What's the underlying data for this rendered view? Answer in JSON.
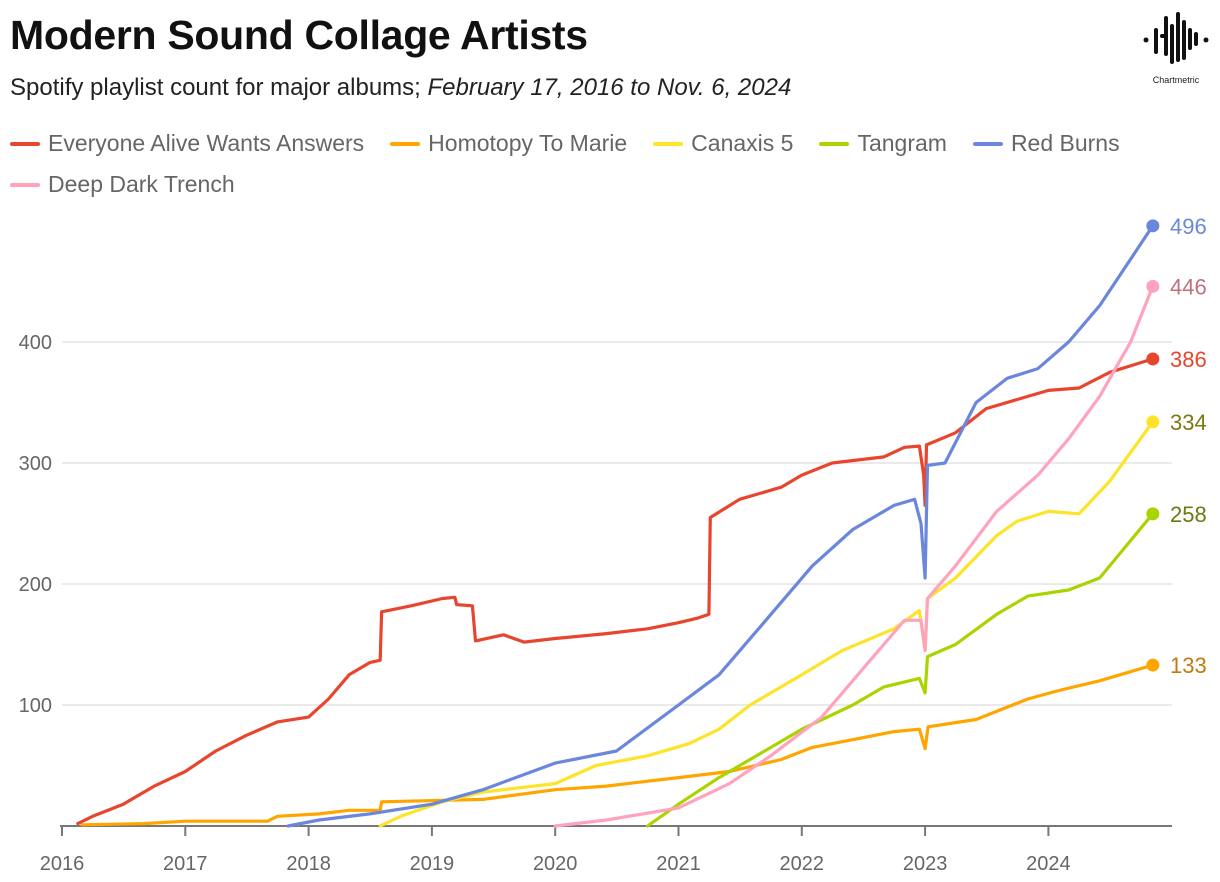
{
  "header": {
    "title": "Modern Sound Collage Artists",
    "subtitle_plain": "Spotify playlist count for major albums; ",
    "subtitle_italic": "February 17, 2016 to Nov. 6, 2024"
  },
  "logo": {
    "text": "Chartmetric"
  },
  "chart_data": {
    "type": "line",
    "title": "Modern Sound Collage Artists",
    "subtitle": "Spotify playlist count for major albums; February 17, 2016 to Nov. 6, 2024",
    "xlabel": "",
    "ylabel": "",
    "xlim": [
      "2016-01-01",
      "2024-12-31"
    ],
    "ylim": [
      0,
      500
    ],
    "x_ticks": [
      "2016",
      "2017",
      "2018",
      "2019",
      "2020",
      "2021",
      "2022",
      "2023",
      "2024"
    ],
    "y_ticks": [
      100,
      200,
      300,
      400
    ],
    "grid": "horizontal",
    "legend_position": "top",
    "series": [
      {
        "name": "Everyone Alive Wants Answers",
        "color": "#e8452e",
        "label_color": "#e8452e",
        "end_value": "386",
        "points": [
          [
            "2016-02-17",
            2
          ],
          [
            "2016-04-01",
            8
          ],
          [
            "2016-07-01",
            18
          ],
          [
            "2016-10-01",
            33
          ],
          [
            "2017-01-01",
            45
          ],
          [
            "2017-04-01",
            62
          ],
          [
            "2017-07-01",
            75
          ],
          [
            "2017-10-01",
            86
          ],
          [
            "2018-01-01",
            90
          ],
          [
            "2018-03-01",
            105
          ],
          [
            "2018-05-01",
            125
          ],
          [
            "2018-07-01",
            135
          ],
          [
            "2018-08-01",
            137
          ],
          [
            "2018-08-05",
            177
          ],
          [
            "2018-11-01",
            182
          ],
          [
            "2019-02-01",
            188
          ],
          [
            "2019-03-10",
            189
          ],
          [
            "2019-03-15",
            183
          ],
          [
            "2019-05-01",
            182
          ],
          [
            "2019-05-10",
            153
          ],
          [
            "2019-08-01",
            158
          ],
          [
            "2019-10-01",
            152
          ],
          [
            "2020-01-01",
            155
          ],
          [
            "2020-06-01",
            159
          ],
          [
            "2020-10-01",
            163
          ],
          [
            "2021-01-01",
            168
          ],
          [
            "2021-03-01",
            172
          ],
          [
            "2021-04-01",
            175
          ],
          [
            "2021-04-05",
            255
          ],
          [
            "2021-07-01",
            270
          ],
          [
            "2021-11-01",
            280
          ],
          [
            "2022-01-01",
            290
          ],
          [
            "2022-04-01",
            300
          ],
          [
            "2022-09-01",
            305
          ],
          [
            "2022-11-01",
            313
          ],
          [
            "2022-12-15",
            314
          ],
          [
            "2022-12-28",
            290
          ],
          [
            "2023-01-01",
            265
          ],
          [
            "2023-01-05",
            315
          ],
          [
            "2023-04-01",
            325
          ],
          [
            "2023-07-01",
            345
          ],
          [
            "2023-11-01",
            355
          ],
          [
            "2024-01-01",
            360
          ],
          [
            "2024-04-01",
            362
          ],
          [
            "2024-07-01",
            375
          ],
          [
            "2024-11-06",
            386
          ]
        ]
      },
      {
        "name": "Homotopy To Marie",
        "color": "#ffa500",
        "label_color": "#c27a10",
        "end_value": "133",
        "points": [
          [
            "2016-03-01",
            1
          ],
          [
            "2016-09-01",
            2
          ],
          [
            "2017-01-01",
            4
          ],
          [
            "2017-09-01",
            4
          ],
          [
            "2017-10-01",
            8
          ],
          [
            "2018-02-01",
            10
          ],
          [
            "2018-05-01",
            13
          ],
          [
            "2018-08-01",
            13
          ],
          [
            "2018-08-05",
            20
          ],
          [
            "2019-06-01",
            22
          ],
          [
            "2020-01-01",
            30
          ],
          [
            "2020-06-01",
            33
          ],
          [
            "2020-10-01",
            37
          ],
          [
            "2021-01-01",
            40
          ],
          [
            "2021-06-01",
            45
          ],
          [
            "2021-11-01",
            55
          ],
          [
            "2022-02-01",
            65
          ],
          [
            "2022-07-01",
            73
          ],
          [
            "2022-10-01",
            78
          ],
          [
            "2022-12-15",
            80
          ],
          [
            "2023-01-01",
            64
          ],
          [
            "2023-01-10",
            82
          ],
          [
            "2023-06-01",
            88
          ],
          [
            "2023-11-01",
            105
          ],
          [
            "2024-02-01",
            112
          ],
          [
            "2024-06-01",
            120
          ],
          [
            "2024-11-06",
            133
          ]
        ]
      },
      {
        "name": "Canaxis 5",
        "color": "#fde428",
        "label_color": "#7a7a10",
        "end_value": "334",
        "points": [
          [
            "2018-08-01",
            0
          ],
          [
            "2018-10-01",
            8
          ],
          [
            "2019-02-01",
            20
          ],
          [
            "2019-06-01",
            28
          ],
          [
            "2020-01-01",
            35
          ],
          [
            "2020-05-01",
            50
          ],
          [
            "2020-10-01",
            58
          ],
          [
            "2021-02-01",
            68
          ],
          [
            "2021-05-01",
            80
          ],
          [
            "2021-08-01",
            100
          ],
          [
            "2022-01-01",
            125
          ],
          [
            "2022-05-01",
            145
          ],
          [
            "2022-10-01",
            163
          ],
          [
            "2022-12-15",
            178
          ],
          [
            "2023-01-01",
            145
          ],
          [
            "2023-01-08",
            188
          ],
          [
            "2023-04-01",
            205
          ],
          [
            "2023-08-01",
            240
          ],
          [
            "2023-10-01",
            252
          ],
          [
            "2024-01-01",
            260
          ],
          [
            "2024-04-01",
            258
          ],
          [
            "2024-07-01",
            285
          ],
          [
            "2024-11-06",
            334
          ]
        ]
      },
      {
        "name": "Tangram",
        "color": "#aad400",
        "label_color": "#6b7a10",
        "end_value": "258",
        "points": [
          [
            "2020-10-01",
            0
          ],
          [
            "2021-01-01",
            18
          ],
          [
            "2021-05-01",
            40
          ],
          [
            "2021-09-01",
            60
          ],
          [
            "2022-01-01",
            80
          ],
          [
            "2022-06-01",
            100
          ],
          [
            "2022-09-01",
            115
          ],
          [
            "2022-12-15",
            122
          ],
          [
            "2023-01-01",
            110
          ],
          [
            "2023-01-08",
            140
          ],
          [
            "2023-04-01",
            150
          ],
          [
            "2023-08-01",
            175
          ],
          [
            "2023-11-01",
            190
          ],
          [
            "2024-03-01",
            195
          ],
          [
            "2024-06-01",
            205
          ],
          [
            "2024-11-06",
            258
          ]
        ]
      },
      {
        "name": "Red Burns",
        "color": "#6b87dc",
        "label_color": "#6b87dc",
        "end_value": "496",
        "points": [
          [
            "2017-11-01",
            0
          ],
          [
            "2018-02-01",
            5
          ],
          [
            "2018-07-01",
            10
          ],
          [
            "2019-01-01",
            18
          ],
          [
            "2019-06-01",
            30
          ],
          [
            "2020-01-01",
            52
          ],
          [
            "2020-07-01",
            62
          ],
          [
            "2021-01-01",
            100
          ],
          [
            "2021-05-01",
            125
          ],
          [
            "2021-09-01",
            165
          ],
          [
            "2022-02-01",
            215
          ],
          [
            "2022-06-01",
            245
          ],
          [
            "2022-10-01",
            265
          ],
          [
            "2022-12-01",
            270
          ],
          [
            "2022-12-20",
            250
          ],
          [
            "2023-01-01",
            205
          ],
          [
            "2023-01-08",
            298
          ],
          [
            "2023-03-01",
            300
          ],
          [
            "2023-06-01",
            350
          ],
          [
            "2023-09-01",
            370
          ],
          [
            "2023-12-01",
            378
          ],
          [
            "2024-03-01",
            400
          ],
          [
            "2024-06-01",
            430
          ],
          [
            "2024-11-06",
            496
          ]
        ]
      },
      {
        "name": "Deep Dark Trench",
        "color": "#ffa3bd",
        "label_color": "#c0707f",
        "end_value": "446",
        "points": [
          [
            "2020-01-01",
            0
          ],
          [
            "2020-06-01",
            5
          ],
          [
            "2021-01-01",
            15
          ],
          [
            "2021-06-01",
            35
          ],
          [
            "2021-10-01",
            58
          ],
          [
            "2022-03-01",
            90
          ],
          [
            "2022-08-01",
            140
          ],
          [
            "2022-11-01",
            170
          ],
          [
            "2022-12-20",
            170
          ],
          [
            "2023-01-01",
            145
          ],
          [
            "2023-01-08",
            188
          ],
          [
            "2023-04-01",
            215
          ],
          [
            "2023-08-01",
            260
          ],
          [
            "2023-12-01",
            290
          ],
          [
            "2024-03-01",
            320
          ],
          [
            "2024-06-01",
            355
          ],
          [
            "2024-09-01",
            400
          ],
          [
            "2024-11-06",
            446
          ]
        ]
      }
    ]
  }
}
